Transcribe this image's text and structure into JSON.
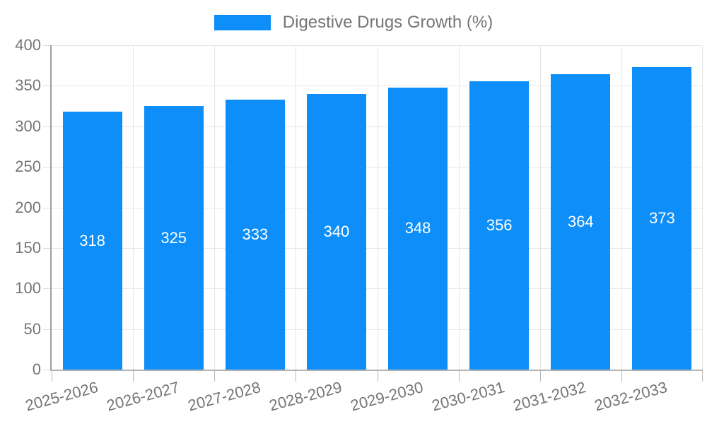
{
  "legend": {
    "label": "Digestive Drugs Growth (%)"
  },
  "colors": {
    "bar": "#0d8ef8",
    "bar_value_text": "#ffffff",
    "axis_text": "#757575",
    "grid_line": "#e6e6e6",
    "y_axis_line": "#9e9e9e",
    "x_axis_line": "#b3b3b3",
    "tick_line": "#b7b7b7",
    "background": "#ffffff"
  },
  "chart_data": {
    "type": "bar",
    "title": "",
    "categories": [
      "2025-2026",
      "2026-2027",
      "2027-2028",
      "2028-2029",
      "2029-2030",
      "2030-2031",
      "2031-2032",
      "2032-2033"
    ],
    "series": [
      {
        "name": "Digestive Drugs Growth (%)",
        "values": [
          318,
          325,
          333,
          340,
          348,
          356,
          364,
          373
        ]
      }
    ],
    "xlabel": "",
    "ylabel": "",
    "ylim": [
      0,
      400
    ],
    "yticks": [
      0,
      50,
      100,
      150,
      200,
      250,
      300,
      350,
      400
    ],
    "grid": true,
    "legend_position": "top-center",
    "bar_value_labels": true,
    "x_tick_label_rotation_deg": -15
  }
}
